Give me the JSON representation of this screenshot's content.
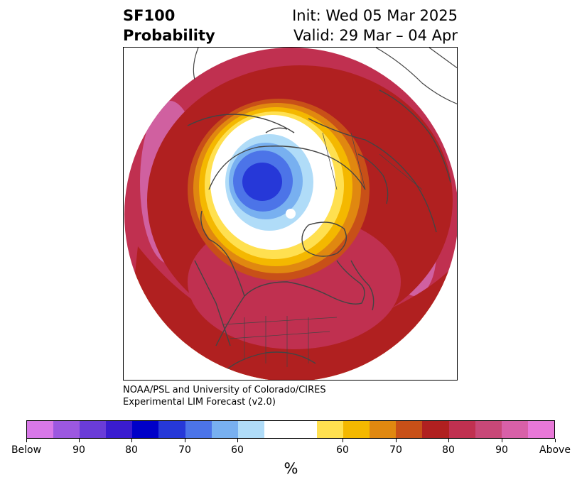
{
  "header": {
    "title_line1": "SF100",
    "title_line2": "Probability",
    "init_text": "Init: Wed 05 Mar 2025",
    "valid_text": "Valid: 29 Mar – 04 Apr"
  },
  "credit": {
    "line1": "NOAA/PSL and University of Colorado/CIRES",
    "line2": "Experimental LIM Forecast (v2.0)"
  },
  "colorbar": {
    "colors": [
      "#d878e8",
      "#9c58e0",
      "#6a3cd8",
      "#3a1cd0",
      "#0000c8",
      "#2638d8",
      "#4c74e8",
      "#78b0f0",
      "#b0dcf8",
      "#ffffff",
      "#ffffff",
      "#ffe050",
      "#f4b800",
      "#e08810",
      "#c85018",
      "#b02020",
      "#c03050",
      "#c84878",
      "#d860a8",
      "#e878d8"
    ],
    "tick_labels": [
      "Below",
      "90",
      "80",
      "70",
      "60",
      "60",
      "70",
      "80",
      "90",
      "Above"
    ],
    "unit": "%"
  },
  "map": {
    "colors": {
      "outer": "#c03050",
      "pink": "#d060a0",
      "red": "#b02020",
      "orange_dark": "#c85018",
      "orange": "#e08810",
      "gold": "#f4b800",
      "yellow": "#ffe050",
      "white": "#ffffff",
      "blue_light": "#b0dcf8",
      "blue_mid": "#78b0f0",
      "blue": "#4c74e8",
      "blue_dark": "#2638d8",
      "coast": "#444444"
    }
  }
}
